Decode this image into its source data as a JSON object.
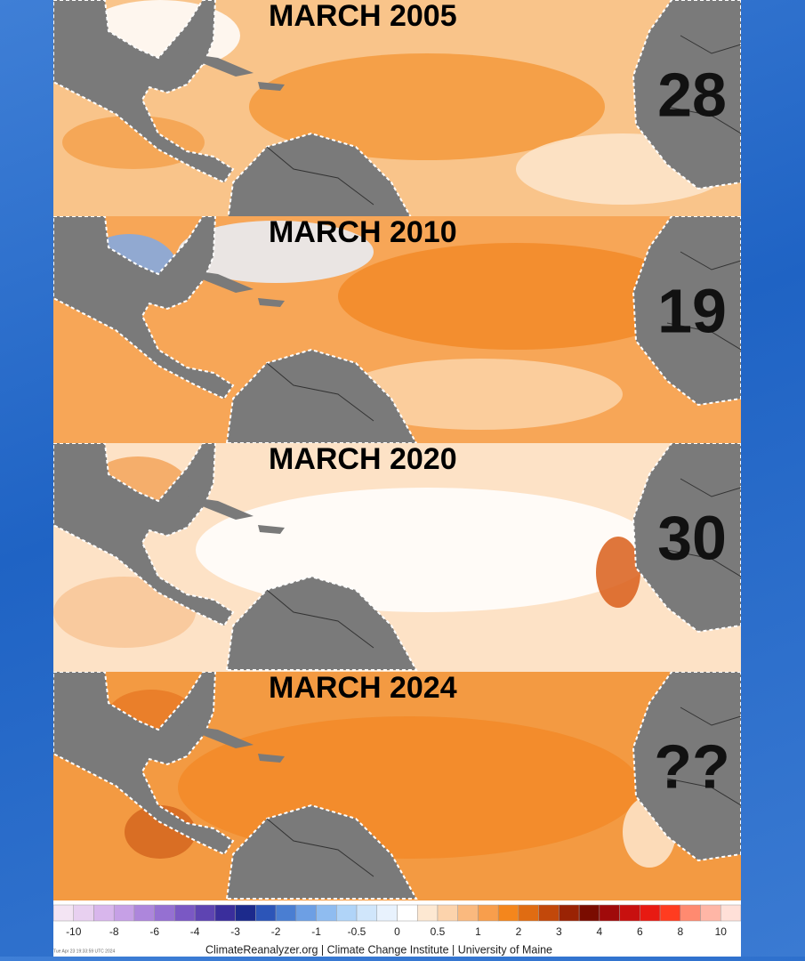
{
  "panels": [
    {
      "title": "MARCH 2005",
      "count": 28
    },
    {
      "title": "MARCH 2010",
      "count": 19
    },
    {
      "title": "MARCH 2020",
      "count": 30
    },
    {
      "title": "MARCH 2024",
      "count": "??"
    }
  ],
  "colorbar": {
    "labels": [
      "-10",
      "-8",
      "-6",
      "-4",
      "-3",
      "-2",
      "-1",
      "-0.5",
      "0",
      "0.5",
      "1",
      "2",
      "3",
      "4",
      "6",
      "8",
      "10"
    ]
  },
  "footer": {
    "credit": "ClimateReanalyzer.org | Climate Change Institute | University of Maine",
    "timestamp": "Tue Apr 23 19:33:59 UTC 2024"
  }
}
